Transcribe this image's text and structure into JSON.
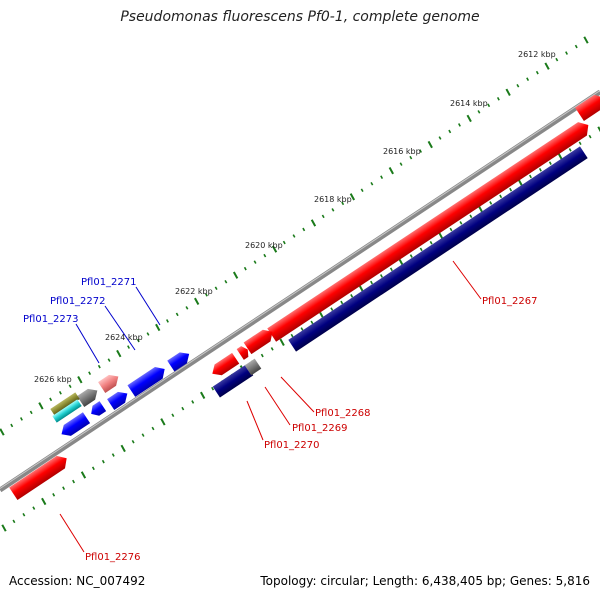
{
  "title": "Pseudomonas fluorescens Pf0-1, complete genome",
  "accession": "Accession: NC_007492",
  "summary": "Topology: circular; Length: 6,438,405 bp; Genes: 5,816",
  "ticks": [
    "2612 kbp",
    "2614 kbp",
    "2616 kbp",
    "2618 kbp",
    "2620 kbp",
    "2622 kbp",
    "2624 kbp",
    "2626 kbp"
  ],
  "genes": [
    {
      "label": "Pfl01_2267",
      "color": "#cc0000"
    },
    {
      "label": "Pfl01_2268",
      "color": "#cc0000"
    },
    {
      "label": "Pfl01_2269",
      "color": "#cc0000"
    },
    {
      "label": "Pfl01_2270",
      "color": "#cc0000"
    },
    {
      "label": "Pfl01_2271",
      "color": "#0000cc"
    },
    {
      "label": "Pfl01_2272",
      "color": "#0000cc"
    },
    {
      "label": "Pfl01_2273",
      "color": "#0000cc"
    },
    {
      "label": "Pfl01_2276",
      "color": "#cc0000"
    }
  ],
  "colors": {
    "forward_cds": "#ff1a1a",
    "reverse_cds": "#1a1aff",
    "rna": "#000080",
    "backbone": "#888888",
    "tick": "#1a7a1a"
  }
}
